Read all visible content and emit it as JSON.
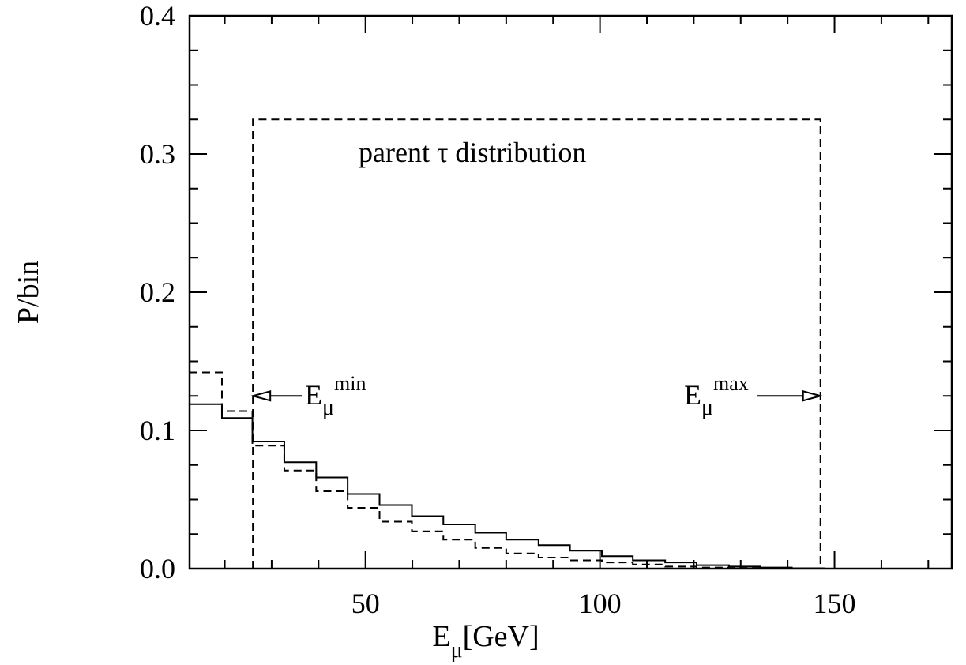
{
  "chart_data": {
    "type": "line",
    "title": "",
    "xlabel": {
      "main": "E",
      "sub": "μ",
      "unit": "[GeV]"
    },
    "ylabel": "P/bin",
    "xlim": [
      12.5,
      175
    ],
    "ylim": [
      0,
      0.4
    ],
    "x_ticks": [
      50,
      100,
      150
    ],
    "y_ticks": [
      0.0,
      0.1,
      0.2,
      0.3,
      0.4
    ],
    "x_tick_labels": [
      "50",
      "100",
      "150"
    ],
    "y_tick_labels": [
      "0.0",
      "0.1",
      "0.2",
      "0.3",
      "0.4"
    ],
    "grid": false,
    "series": [
      {
        "style": "solid",
        "bin_edges": [
          12.5,
          19.4,
          25.9,
          32.7,
          39.5,
          46.2,
          53.0,
          59.9,
          66.6,
          73.4,
          80.0,
          86.9,
          93.6,
          100.4,
          107.0,
          113.9,
          120.6,
          127.5,
          134.2,
          140.9,
          147.7,
          175
        ],
        "values": [
          0.119,
          0.109,
          0.092,
          0.077,
          0.066,
          0.054,
          0.046,
          0.038,
          0.032,
          0.026,
          0.021,
          0.017,
          0.013,
          0.009,
          0.006,
          0.0045,
          0.0025,
          0.0015,
          0.0008,
          0.0003,
          0.0
        ]
      },
      {
        "style": "dashed",
        "bin_edges": [
          12.5,
          19.4,
          25.9,
          32.7,
          39.5,
          46.2,
          53.0,
          59.9,
          66.6,
          73.4,
          80.0,
          86.9,
          93.6,
          100.4,
          107.0,
          113.9,
          120.6,
          127.5,
          134.2,
          140.9,
          147.7,
          175
        ],
        "values": [
          0.142,
          0.114,
          0.089,
          0.071,
          0.056,
          0.044,
          0.034,
          0.027,
          0.021,
          0.015,
          0.011,
          0.008,
          0.006,
          0.0045,
          0.003,
          0.0015,
          0.0008,
          0.0004,
          0.0002,
          0.0001,
          0.0
        ]
      },
      {
        "style": "dashed",
        "x": [
          26.0,
          26.0,
          147.0,
          147.0
        ],
        "y": [
          0.0,
          0.325,
          0.325,
          0.0
        ]
      }
    ],
    "annotations": [
      {
        "text": "parent τ distribution"
      },
      {
        "main": "E",
        "sub": "μ",
        "sup": "min",
        "arrow_x": 26.0,
        "y": 0.125
      },
      {
        "main": "E",
        "sub": "μ",
        "sup": "max",
        "arrow_x": 147.0,
        "y": 0.125
      }
    ]
  }
}
